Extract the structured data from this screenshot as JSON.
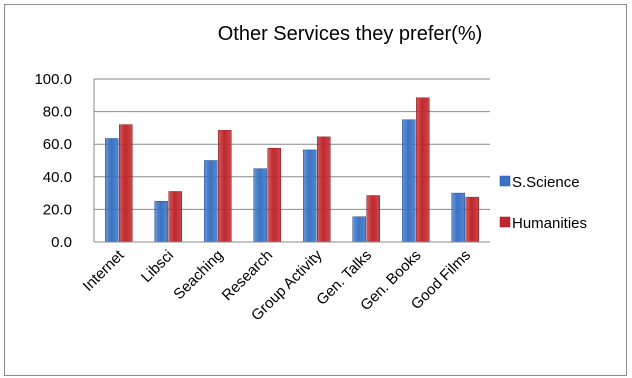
{
  "chart_data": {
    "type": "bar",
    "title": "Other Services they prefer(%)",
    "xlabel": "",
    "ylabel": "",
    "categories": [
      "Internet",
      "Libsci",
      "Seaching",
      "Research",
      "Group Activity",
      "Gen. Talks",
      "Gen. Books",
      "Good Films"
    ],
    "series": [
      {
        "name": "S.Science",
        "values": [
          63.5,
          25.0,
          50.0,
          45.0,
          56.5,
          15.5,
          75.0,
          30.0
        ],
        "color": "#3a72c4"
      },
      {
        "name": "Humanities",
        "values": [
          72.0,
          31.0,
          68.5,
          57.5,
          64.5,
          28.5,
          88.5,
          27.5
        ],
        "color": "#c0282d"
      }
    ],
    "ylim": [
      0,
      100
    ],
    "yticks": [
      "0.0",
      "20.0",
      "40.0",
      "60.0",
      "80.0",
      "100.0"
    ],
    "grid": true,
    "legend": "right"
  }
}
